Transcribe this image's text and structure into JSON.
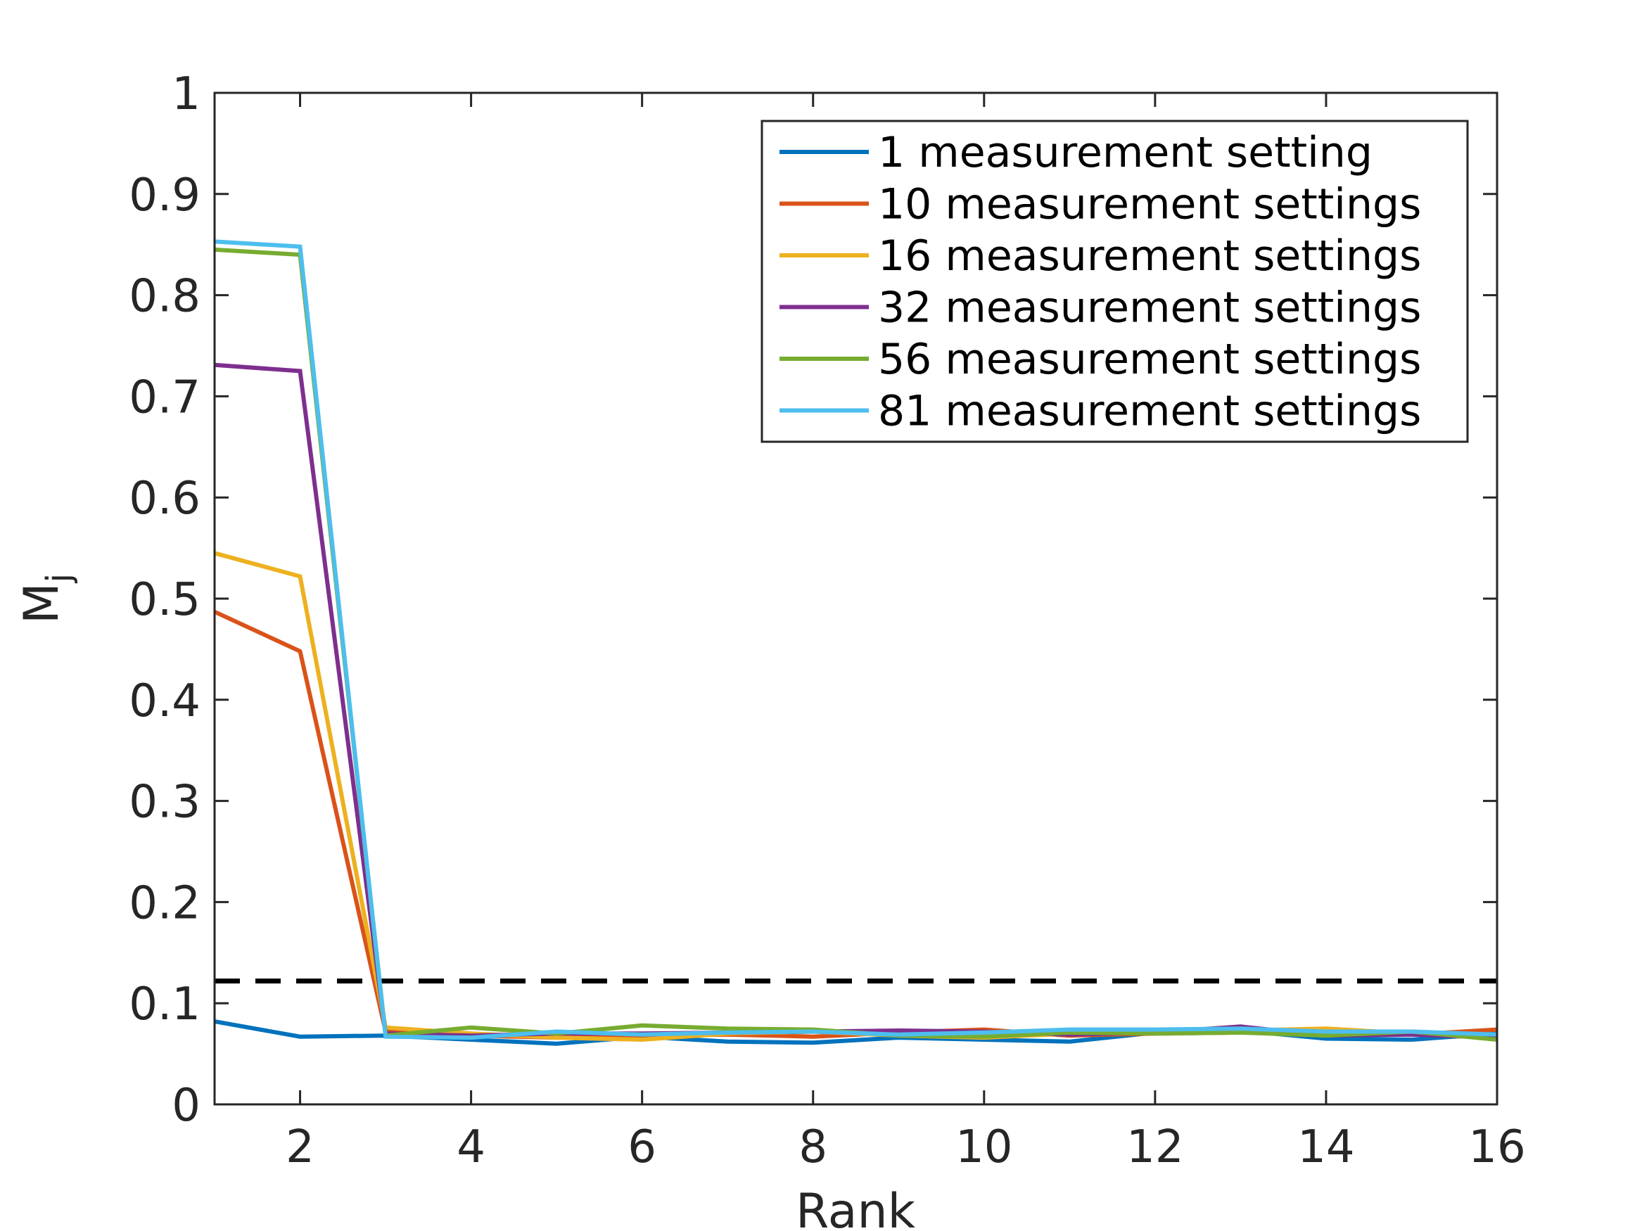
{
  "chart_data": {
    "type": "line",
    "title": "",
    "xlabel": "Rank",
    "ylabel_main": "M",
    "ylabel_sub": "j",
    "xlim": [
      1,
      16
    ],
    "ylim": [
      0,
      1
    ],
    "x_ticks": [
      2,
      4,
      6,
      8,
      10,
      12,
      14,
      16
    ],
    "y_ticks": [
      0,
      0.1,
      0.2,
      0.3,
      0.4,
      0.5,
      0.6,
      0.7,
      0.8,
      0.9,
      1
    ],
    "y_tick_labels": [
      "0",
      "0.1",
      "0.2",
      "0.3",
      "0.4",
      "0.5",
      "0.6",
      "0.7",
      "0.8",
      "0.9",
      "1"
    ],
    "grid": false,
    "legend_position": "top-right",
    "threshold": {
      "y": 0.122,
      "style": "dashed",
      "color": "#000000"
    },
    "x": [
      1,
      2,
      3,
      4,
      5,
      6,
      7,
      8,
      9,
      10,
      11,
      12,
      13,
      14,
      15,
      16
    ],
    "series": [
      {
        "name": "1 measurement setting",
        "color": "#0072BD",
        "values": [
          0.082,
          0.067,
          0.068,
          0.064,
          0.06,
          0.067,
          0.062,
          0.061,
          0.066,
          0.064,
          0.062,
          0.071,
          0.073,
          0.065,
          0.064,
          0.07
        ]
      },
      {
        "name": "10 measurement settings",
        "color": "#D95319",
        "values": [
          0.487,
          0.448,
          0.072,
          0.068,
          0.066,
          0.068,
          0.069,
          0.067,
          0.071,
          0.074,
          0.068,
          0.07,
          0.071,
          0.072,
          0.069,
          0.074
        ]
      },
      {
        "name": "16 measurement settings",
        "color": "#EDB120",
        "values": [
          0.545,
          0.522,
          0.076,
          0.07,
          0.066,
          0.064,
          0.07,
          0.072,
          0.068,
          0.066,
          0.07,
          0.072,
          0.073,
          0.075,
          0.07,
          0.068
        ]
      },
      {
        "name": "32 measurement settings",
        "color": "#7E2F8E",
        "values": [
          0.731,
          0.725,
          0.07,
          0.068,
          0.07,
          0.07,
          0.071,
          0.072,
          0.073,
          0.072,
          0.069,
          0.071,
          0.077,
          0.068,
          0.069,
          0.066
        ]
      },
      {
        "name": "56 measurement settings",
        "color": "#77AC30",
        "values": [
          0.845,
          0.84,
          0.068,
          0.076,
          0.07,
          0.078,
          0.075,
          0.074,
          0.068,
          0.067,
          0.071,
          0.07,
          0.071,
          0.068,
          0.072,
          0.064
        ]
      },
      {
        "name": "81 measurement settings",
        "color": "#4DBEEE",
        "values": [
          0.853,
          0.848,
          0.067,
          0.066,
          0.072,
          0.069,
          0.071,
          0.072,
          0.069,
          0.071,
          0.074,
          0.074,
          0.075,
          0.072,
          0.072,
          0.069
        ]
      }
    ]
  }
}
